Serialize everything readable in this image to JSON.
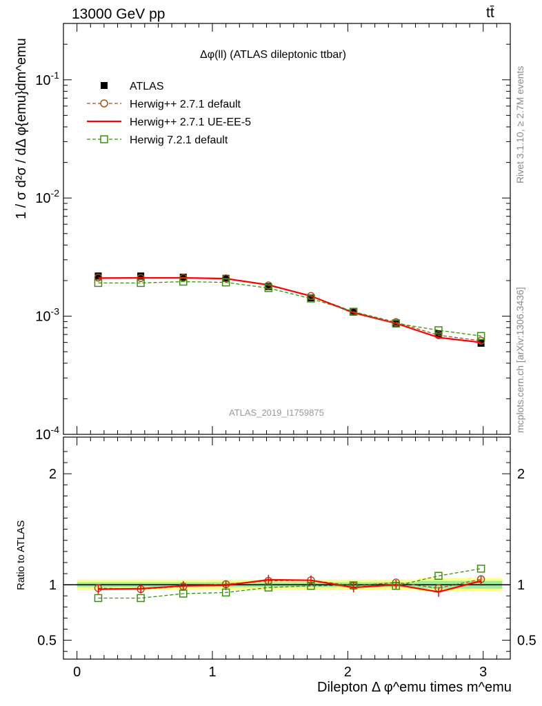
{
  "header": {
    "energy_label": "13000 GeV pp",
    "process_label": "tt̄"
  },
  "side": {
    "rivet_label": "Rivet 3.1.10, ≥ 2.7M events",
    "mcplots_label": "mcplots.cern.ch [arXiv:1306.3436]"
  },
  "chart_data": [
    {
      "type": "line",
      "title": "Δφ(ll) (ATLAS dileptonic ttbar)",
      "ylabel": "1 / σ d²σ / dΔ φ{emu}dm^emu",
      "yscale": "log",
      "ylim": [
        0.0001,
        0.3
      ],
      "xlim": [
        -0.1,
        3.2
      ],
      "y_ticks": [
        "10^-4",
        "10^-3",
        "10^-2",
        "10^-1"
      ],
      "watermark": "ATLAS_2019_I1759875",
      "x": [
        0.157,
        0.471,
        0.785,
        1.1,
        1.414,
        1.728,
        2.042,
        2.356,
        2.67,
        2.984
      ],
      "series": [
        {
          "name": "ATLAS",
          "style": "data-square",
          "color": "#000000",
          "values": [
            0.00219,
            0.00219,
            0.00214,
            0.00209,
            0.00178,
            0.00143,
            0.0011,
            0.00086,
            0.00071,
            0.00059
          ]
        },
        {
          "name": "Herwig++ 2.7.1 default",
          "style": "dashed-circle",
          "color": "#a0521e",
          "values": [
            0.00212,
            0.0021,
            0.00211,
            0.00209,
            0.00182,
            0.00148,
            0.00109,
            0.00089,
            0.00069,
            0.00062
          ]
        },
        {
          "name": "Herwig++ 2.7.1 UE-EE-5",
          "style": "solid",
          "color": "#ff0000",
          "values": [
            0.0021,
            0.00211,
            0.00211,
            0.00208,
            0.00184,
            0.00148,
            0.00107,
            0.00087,
            0.00066,
            0.0006
          ]
        },
        {
          "name": "Herwig 7.2.1 default",
          "style": "dashed-square",
          "color": "#3a8d12",
          "values": [
            0.00191,
            0.00191,
            0.00196,
            0.00193,
            0.00173,
            0.00141,
            0.00109,
            0.00087,
            0.00076,
            0.00068
          ]
        }
      ]
    },
    {
      "type": "line",
      "ylabel": "Ratio to ATLAS",
      "xlabel": "Dilepton Δ φ^emu times m^emu",
      "ylim": [
        0.33,
        2.33
      ],
      "xlim": [
        -0.1,
        3.2
      ],
      "y_ticks": [
        "0.5",
        "1",
        "2"
      ],
      "x_ticks": [
        "0",
        "1",
        "2",
        "3"
      ],
      "x": [
        0.157,
        0.471,
        0.785,
        1.1,
        1.414,
        1.728,
        2.042,
        2.356,
        2.67,
        2.984
      ],
      "series": [
        {
          "name": "Herwig++ 2.7.1 default",
          "color": "#a0521e",
          "values": [
            0.97,
            0.96,
            0.985,
            1.005,
            1.035,
            1.04,
            0.99,
            1.02,
            0.97,
            1.05
          ]
        },
        {
          "name": "Herwig++ 2.7.1 UE-EE-5",
          "color": "#ff0000",
          "values": [
            0.96,
            0.965,
            0.99,
            0.995,
            1.045,
            1.04,
            0.975,
            1.0,
            0.935,
            1.035
          ]
        },
        {
          "name": "Herwig 7.2.1 default",
          "color": "#3a8d12",
          "values": [
            0.88,
            0.88,
            0.92,
            0.93,
            0.975,
            0.99,
            0.995,
            0.99,
            1.08,
            1.145
          ]
        }
      ]
    }
  ]
}
